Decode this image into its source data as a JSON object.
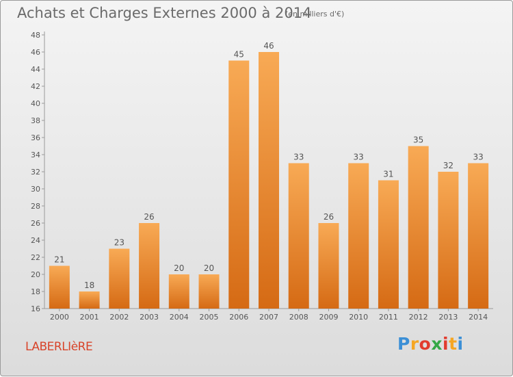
{
  "title": "Achats et Charges Externes 2000 à 2014",
  "subtitle": "(en milliers d'€)",
  "place": "LABERLIèRE",
  "logo": {
    "letters": [
      "P",
      "r",
      "o",
      "x",
      "i",
      "t",
      "i"
    ],
    "colors": [
      "#3b8fd6",
      "#f5a623",
      "#e23b2e",
      "#35a845",
      "#e23b2e",
      "#f5a623",
      "#3b8fd6"
    ]
  },
  "colors": {
    "bar_light": "#f8aa55",
    "bar_dark": "#d56a14",
    "axis": "#999999",
    "text": "#555555"
  },
  "chart_data": {
    "type": "bar",
    "categories": [
      "2000",
      "2001",
      "2002",
      "2003",
      "2004",
      "2005",
      "2006",
      "2007",
      "2008",
      "2009",
      "2010",
      "2011",
      "2012",
      "2013",
      "2014"
    ],
    "values": [
      21,
      18,
      23,
      26,
      20,
      20,
      45,
      46,
      33,
      26,
      33,
      31,
      35,
      32,
      33
    ],
    "title": "Achats et Charges Externes 2000 à 2014",
    "subtitle": "(en milliers d'€)",
    "xlabel": "",
    "ylabel": "",
    "ylim": [
      16,
      48
    ],
    "yticks": [
      16,
      18,
      20,
      22,
      24,
      26,
      28,
      30,
      32,
      34,
      36,
      38,
      40,
      42,
      44,
      46,
      48
    ],
    "grid": false,
    "data_labels": true
  }
}
